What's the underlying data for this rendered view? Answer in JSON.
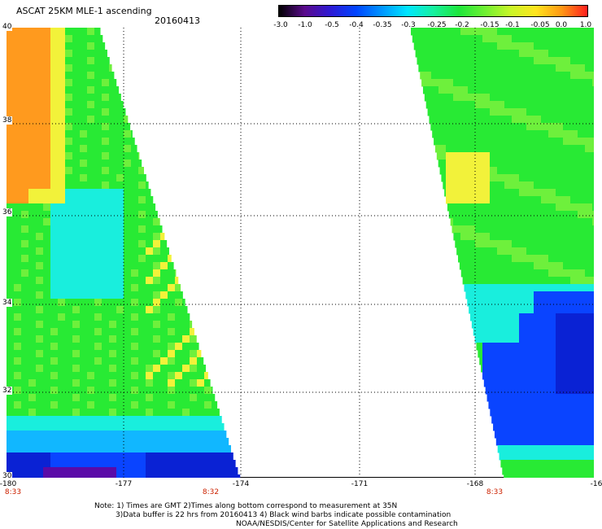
{
  "header": {
    "title": "ASCAT 25KM MLE-1 ascending",
    "date": "20160413"
  },
  "colorbar": {
    "labels": [
      "-3.0",
      "-1.0",
      "-0.5",
      "-0.4",
      "-0.35",
      "-0.3",
      "-0.25",
      "-0.2",
      "-0.15",
      "-0.1",
      "-0.05",
      "0.0",
      "1.0"
    ],
    "stops": [
      "#000000",
      "#5a0a8c",
      "#2e1ad4",
      "#0044ff",
      "#0095ff",
      "#00e6ff",
      "#15f0a0",
      "#1ee63c",
      "#6ef032",
      "#c8f628",
      "#ffe41e",
      "#ff9814",
      "#ff1e1e"
    ]
  },
  "map": {
    "lat_labels": [
      "40",
      "38",
      "36",
      "34",
      "32",
      "30"
    ],
    "lon_labels": [
      "-180",
      "-177",
      "-174",
      "-171",
      "-168",
      "-16"
    ],
    "time_labels": [
      "8:33",
      "8:32",
      "8:33"
    ],
    "palette": {
      "orange": "#ff9a1e",
      "yellow": "#f2f23a",
      "green": "#28ea34",
      "lightgreen": "#6ef03c",
      "cyan": "#19eedd",
      "lightblue": "#11b7ff",
      "blue": "#0a44ff",
      "darkblue": "#0a22d4",
      "purple": "#5a0aa8"
    }
  },
  "footer": {
    "line1": "Note: 1) Times are GMT 2)Times along bottom correspond to measurement at 35N",
    "line2": "3)Data buffer is 22 hrs from 20160413 4) Black wind barbs indicate possible contamination",
    "line3": "NOAA/NESDIS/Center for Satellite Applications and Research"
  }
}
